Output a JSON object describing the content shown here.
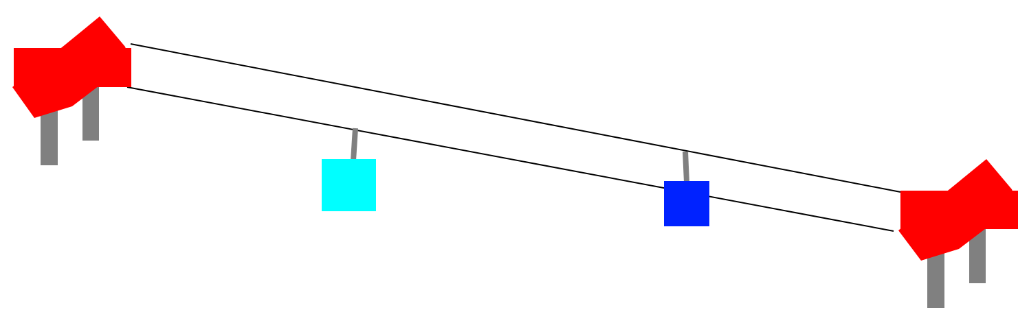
{
  "colors": {
    "background": "#ffffff",
    "station": "#ff0000",
    "pillar": "#808080",
    "cable": "#000000",
    "hanger": "#808080",
    "cabin_left": "#00ffff",
    "cabin_right": "#0022ff"
  },
  "elements": {
    "stations": [
      "left-station",
      "right-station"
    ],
    "cables": [
      "upper-cable",
      "lower-cable"
    ],
    "cabins": [
      "cyan-cabin",
      "blue-cabin"
    ]
  }
}
